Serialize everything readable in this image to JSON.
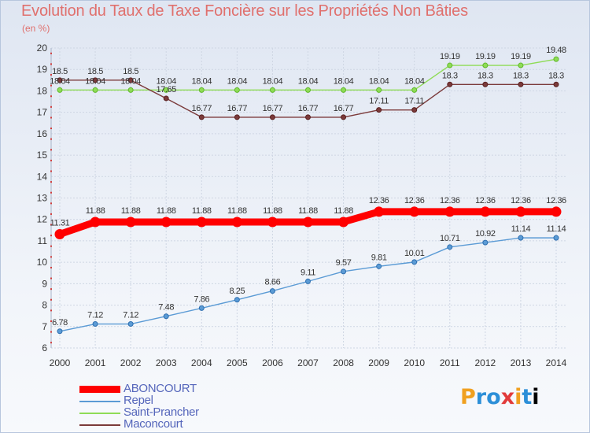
{
  "title": "Evolution du Taux de Taxe Foncière sur les Propriétés Non Bâties",
  "unit": "(en %)",
  "brand": "Proxiti",
  "chart_data": {
    "type": "line",
    "x": [
      2000,
      2001,
      2002,
      2003,
      2004,
      2005,
      2006,
      2007,
      2008,
      2009,
      2010,
      2011,
      2012,
      2013,
      2014
    ],
    "ylim": [
      6,
      20
    ],
    "yticks": [
      6,
      7,
      8,
      9,
      10,
      11,
      12,
      13,
      14,
      15,
      16,
      17,
      18,
      19,
      20
    ],
    "grid": true,
    "legend_position": "bottom-left",
    "series": [
      {
        "name": "ABONCOURT",
        "color": "#ff0000",
        "values": [
          11.31,
          11.88,
          11.88,
          11.88,
          11.88,
          11.88,
          11.88,
          11.88,
          11.88,
          12.36,
          12.36,
          12.36,
          12.36,
          12.36,
          12.36
        ],
        "labels": [
          "11.31",
          "11.88",
          "11.88",
          "11.88",
          "11.88",
          "11.88",
          "11.88",
          "11.88",
          "11.88",
          "12.36",
          "12.36",
          "12.36",
          "12.36",
          "12.36",
          "12.36"
        ]
      },
      {
        "name": "Repel",
        "color": "#5b9bd5",
        "values": [
          6.78,
          7.12,
          7.12,
          7.48,
          7.86,
          8.25,
          8.66,
          9.11,
          9.57,
          9.81,
          10.01,
          10.71,
          10.92,
          11.14,
          11.14
        ],
        "labels": [
          "6.78",
          "7.12",
          "7.12",
          "7.48",
          "7.86",
          "8.25",
          "8.66",
          "9.11",
          "9.57",
          "9.81",
          "10.01",
          "10.71",
          "10.92",
          "11.14",
          "11.14"
        ]
      },
      {
        "name": "Saint-Prancher",
        "color": "#8fdc56",
        "values": [
          18.04,
          18.04,
          18.04,
          18.04,
          18.04,
          18.04,
          18.04,
          18.04,
          18.04,
          18.04,
          18.04,
          19.19,
          19.19,
          19.19,
          19.48
        ],
        "labels": [
          "18.04",
          "18.04",
          "18.04",
          "18.04",
          "18.04",
          "18.04",
          "18.04",
          "18.04",
          "18.04",
          "18.04",
          "18.04",
          "19.19",
          "19.19",
          "19.19",
          "19.48"
        ]
      },
      {
        "name": "Maconcourt",
        "color": "#7b3a3a",
        "values": [
          18.5,
          18.5,
          18.5,
          17.65,
          16.77,
          16.77,
          16.77,
          16.77,
          16.77,
          17.11,
          17.11,
          18.3,
          18.3,
          18.3,
          18.3
        ],
        "labels": [
          "18.5",
          "18.5",
          "18.5",
          "17.65",
          "16.77",
          "16.77",
          "16.77",
          "16.77",
          "16.77",
          "17.11",
          "17.11",
          "18.3",
          "18.3",
          "18.3",
          "18.3"
        ]
      }
    ]
  }
}
